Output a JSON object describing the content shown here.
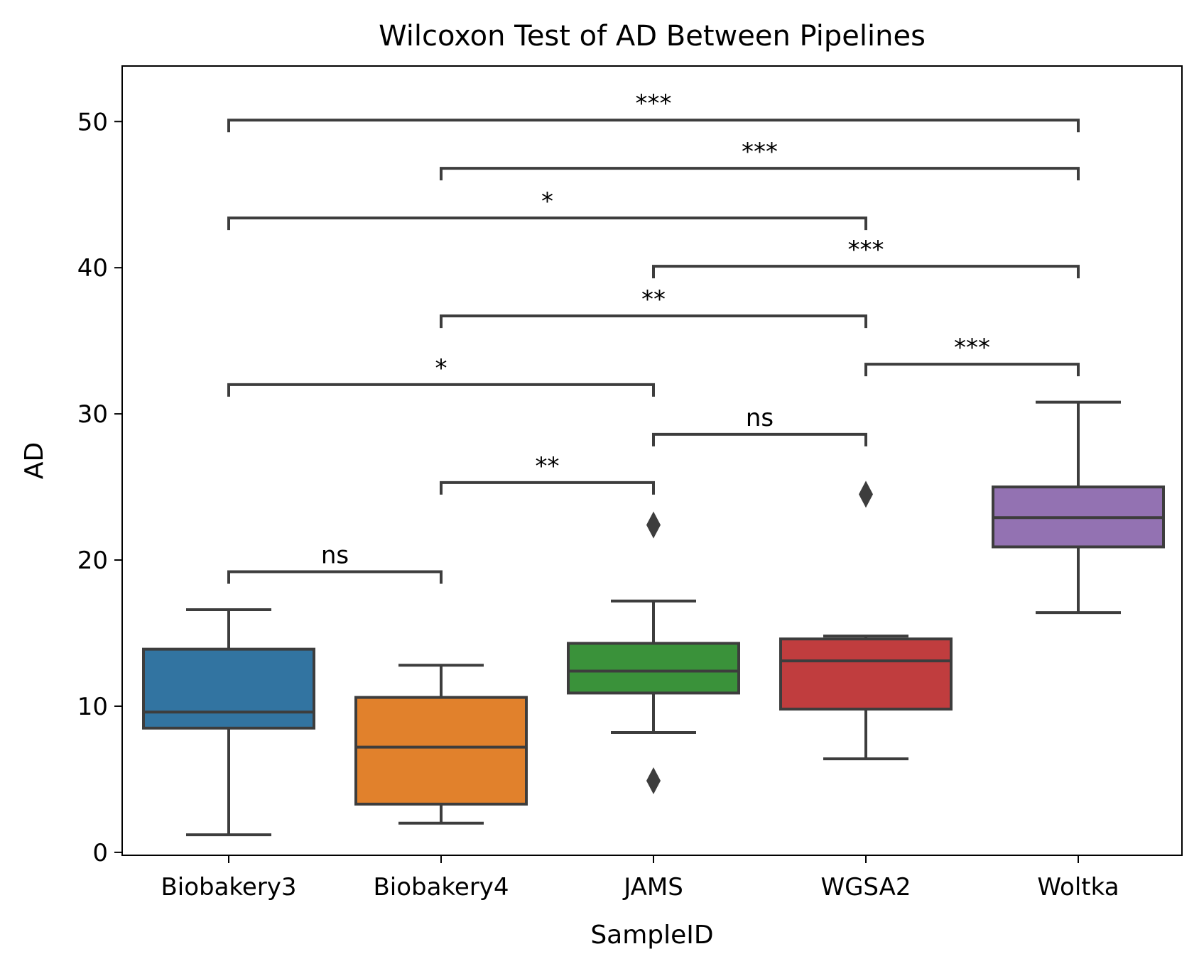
{
  "chart_data": {
    "type": "box",
    "title": "Wilcoxon Test of AD Between Pipelines",
    "xlabel": "SampleID",
    "ylabel": "AD",
    "ylim": [
      -0.2,
      53.8
    ],
    "yticks": [
      0,
      10,
      20,
      30,
      40,
      50
    ],
    "grid": false,
    "categories": [
      "Biobakery3",
      "Biobakery4",
      "JAMS",
      "WGSA2",
      "Woltka"
    ],
    "boxes": [
      {
        "category": "Biobakery3",
        "color": "#3274a1",
        "whisker_low": 1.2,
        "q1": 8.5,
        "median": 9.6,
        "q3": 13.9,
        "whisker_high": 16.6,
        "outliers": []
      },
      {
        "category": "Biobakery4",
        "color": "#e1812c",
        "whisker_low": 2.0,
        "q1": 3.3,
        "median": 7.2,
        "q3": 10.6,
        "whisker_high": 12.8,
        "outliers": []
      },
      {
        "category": "JAMS",
        "color": "#3a923a",
        "whisker_low": 8.2,
        "q1": 10.9,
        "median": 12.4,
        "q3": 14.3,
        "whisker_high": 17.2,
        "outliers": [
          4.9,
          22.4
        ]
      },
      {
        "category": "WGSA2",
        "color": "#c03d3e",
        "whisker_low": 6.4,
        "q1": 9.8,
        "median": 13.1,
        "q3": 14.6,
        "whisker_high": 14.8,
        "outliers": [
          24.5
        ]
      },
      {
        "category": "Woltka",
        "color": "#9372b2",
        "whisker_low": 16.4,
        "q1": 20.9,
        "median": 22.9,
        "q3": 25.0,
        "whisker_high": 30.8,
        "outliers": []
      }
    ],
    "significance": [
      {
        "from": "Biobakery3",
        "to": "Biobakery4",
        "y": 19.2,
        "label": "ns"
      },
      {
        "from": "Biobakery4",
        "to": "JAMS",
        "y": 25.3,
        "label": "**"
      },
      {
        "from": "JAMS",
        "to": "WGSA2",
        "y": 28.6,
        "label": "ns"
      },
      {
        "from": "Biobakery3",
        "to": "JAMS",
        "y": 32.0,
        "label": "*"
      },
      {
        "from": "WGSA2",
        "to": "Woltka",
        "y": 33.4,
        "label": "***"
      },
      {
        "from": "Biobakery4",
        "to": "WGSA2",
        "y": 36.7,
        "label": "**"
      },
      {
        "from": "JAMS",
        "to": "Woltka",
        "y": 40.1,
        "label": "***"
      },
      {
        "from": "Biobakery3",
        "to": "WGSA2",
        "y": 43.4,
        "label": "*"
      },
      {
        "from": "Biobakery4",
        "to": "Woltka",
        "y": 46.8,
        "label": "***"
      },
      {
        "from": "Biobakery3",
        "to": "Woltka",
        "y": 50.1,
        "label": "***"
      }
    ]
  }
}
